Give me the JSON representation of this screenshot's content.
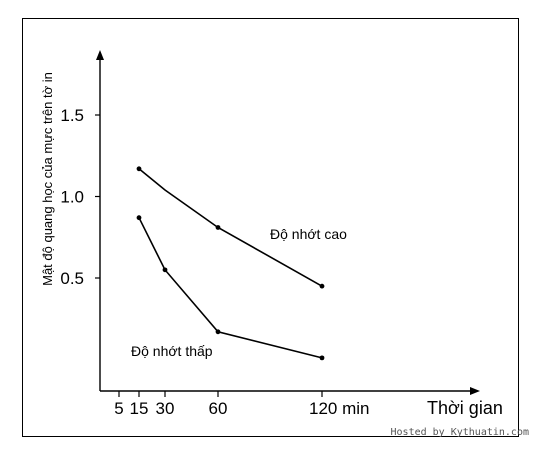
{
  "page": {
    "watermark": "Hosted by Kythuatin.com"
  },
  "chart_data": {
    "type": "line",
    "xlabel": "Thời gian",
    "ylabel": "Mật độ quang học của mực trên tờ in",
    "x_ticks": [
      5,
      15,
      30,
      60,
      120
    ],
    "x_tick_labels": [
      "5",
      "15",
      "30",
      "60",
      "120 min"
    ],
    "y_ticks": [
      0.5,
      1.0,
      1.5
    ],
    "y_tick_labels": [
      "0.5",
      "1.0",
      "1.5"
    ],
    "series": [
      {
        "name": "Độ nhớt cao",
        "points": [
          {
            "x": 15,
            "y": 1.17,
            "marker": true
          },
          {
            "x": 30,
            "y": 1.04,
            "marker": false
          },
          {
            "x": 60,
            "y": 0.81,
            "marker": true
          },
          {
            "x": 120,
            "y": 0.45,
            "marker": true
          }
        ]
      },
      {
        "name": "Độ nhớt thấp",
        "points": [
          {
            "x": 15,
            "y": 0.87,
            "marker": true
          },
          {
            "x": 30,
            "y": 0.55,
            "marker": true
          },
          {
            "x": 60,
            "y": 0.17,
            "marker": true
          },
          {
            "x": 120,
            "y": 0.01,
            "marker": true
          }
        ]
      }
    ]
  }
}
